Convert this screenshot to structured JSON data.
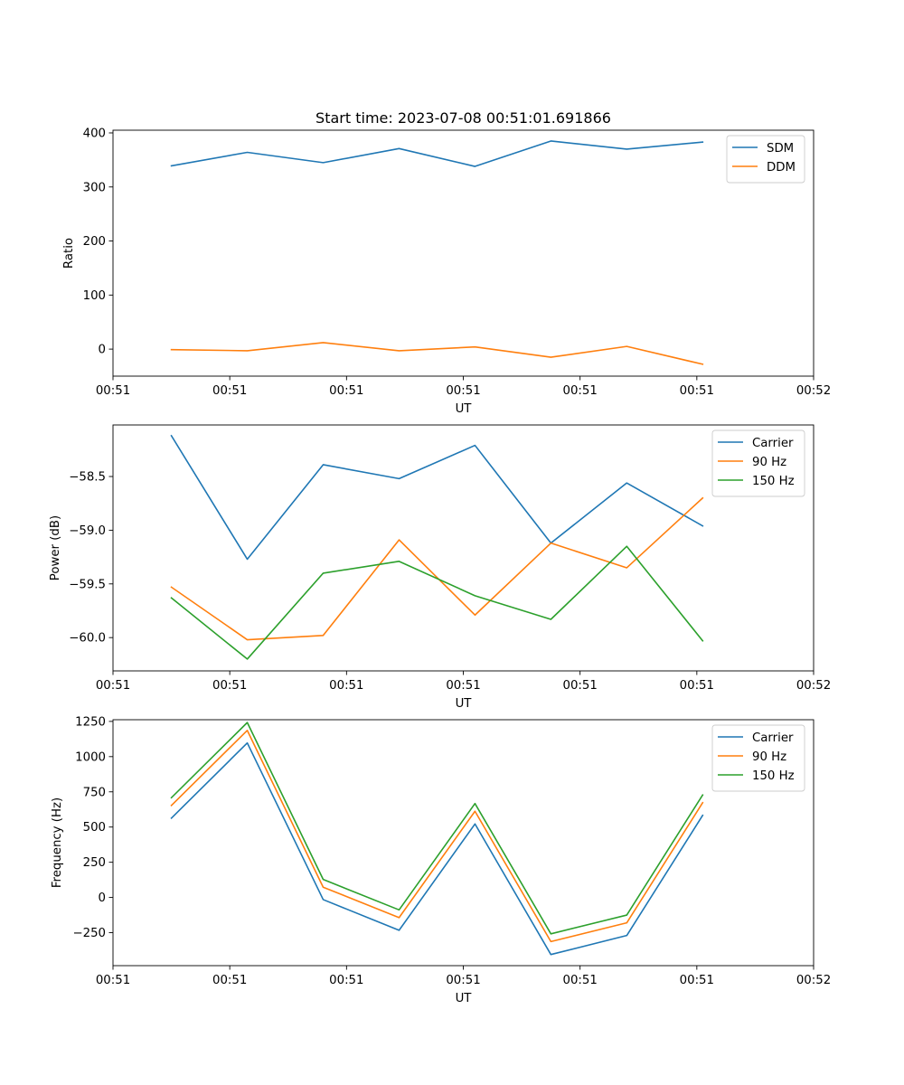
{
  "chart_data": [
    {
      "type": "line",
      "title": "Start time: 2023-07-08 00:51:01.691866",
      "xlabel": "UT",
      "ylabel": "Ratio",
      "xlim": [
        0,
        12
      ],
      "ylim": [
        -50,
        405
      ],
      "x": [
        1,
        2.3,
        3.6,
        4.9,
        6.2,
        7.5,
        8.8,
        10.1
      ],
      "xticks": [
        0,
        2,
        4,
        6,
        8,
        10,
        12
      ],
      "xticklabels": [
        "00:51",
        "00:51",
        "00:51",
        "00:51",
        "00:51",
        "00:51",
        "00:52"
      ],
      "yticks": [
        0,
        100,
        200,
        300,
        400
      ],
      "yticklabels": [
        "0",
        "100",
        "200",
        "300",
        "400"
      ],
      "legend_position": "top-right",
      "series": [
        {
          "name": "SDM",
          "color": "#1f77b4",
          "values": [
            339,
            364,
            345,
            371,
            338,
            385,
            370,
            383
          ]
        },
        {
          "name": "DDM",
          "color": "#ff7f0e",
          "values": [
            -1,
            -3,
            12,
            -3,
            4,
            -15,
            5,
            -28
          ]
        }
      ]
    },
    {
      "type": "line",
      "title": "",
      "xlabel": "UT",
      "ylabel": "Power (dB)",
      "xlim": [
        0,
        12
      ],
      "ylim": [
        -60.31,
        -58.02
      ],
      "x": [
        1,
        2.3,
        3.6,
        4.9,
        6.2,
        7.5,
        8.8,
        10.1
      ],
      "xticks": [
        0,
        2,
        4,
        6,
        8,
        10,
        12
      ],
      "xticklabels": [
        "00:51",
        "00:51",
        "00:51",
        "00:51",
        "00:51",
        "00:51",
        "00:52"
      ],
      "yticks": [
        -60.0,
        -59.5,
        -59.0,
        -58.5
      ],
      "yticklabels": [
        "−60.0",
        "−59.5",
        "−59.0",
        "−58.5"
      ],
      "legend_position": "top-right",
      "series": [
        {
          "name": "Carrier",
          "color": "#1f77b4",
          "values": [
            -58.12,
            -59.27,
            -58.39,
            -58.52,
            -58.21,
            -59.12,
            -58.56,
            -58.96
          ]
        },
        {
          "name": "90 Hz",
          "color": "#ff7f0e",
          "values": [
            -59.53,
            -60.02,
            -59.98,
            -59.09,
            -59.79,
            -59.12,
            -59.35,
            -58.7
          ]
        },
        {
          "name": "150 Hz",
          "color": "#2ca02c",
          "values": [
            -59.63,
            -60.2,
            -59.4,
            -59.29,
            -59.61,
            -59.83,
            -59.15,
            -60.03
          ]
        }
      ]
    },
    {
      "type": "line",
      "title": "",
      "xlabel": "UT",
      "ylabel": "Frequency (Hz)",
      "xlim": [
        0,
        12
      ],
      "ylim": [
        -484,
        1262
      ],
      "x": [
        1,
        2.3,
        3.6,
        4.9,
        6.2,
        7.5,
        8.8,
        10.1
      ],
      "xticks": [
        0,
        2,
        4,
        6,
        8,
        10,
        12
      ],
      "xticklabels": [
        "00:51",
        "00:51",
        "00:51",
        "00:51",
        "00:51",
        "00:51",
        "00:52"
      ],
      "yticks": [
        -250,
        0,
        250,
        500,
        750,
        1000,
        1250
      ],
      "yticklabels": [
        "−250",
        "0",
        "250",
        "500",
        "750",
        "1000",
        "1250"
      ],
      "legend_position": "top-right",
      "series": [
        {
          "name": "Carrier",
          "color": "#1f77b4",
          "values": [
            563,
            1097,
            -15,
            -233,
            522,
            -405,
            -270,
            583
          ]
        },
        {
          "name": "90 Hz",
          "color": "#ff7f0e",
          "values": [
            653,
            1186,
            73,
            -143,
            612,
            -313,
            -180,
            673
          ]
        },
        {
          "name": "150 Hz",
          "color": "#2ca02c",
          "values": [
            708,
            1242,
            128,
            -88,
            667,
            -258,
            -125,
            728
          ]
        }
      ]
    }
  ]
}
